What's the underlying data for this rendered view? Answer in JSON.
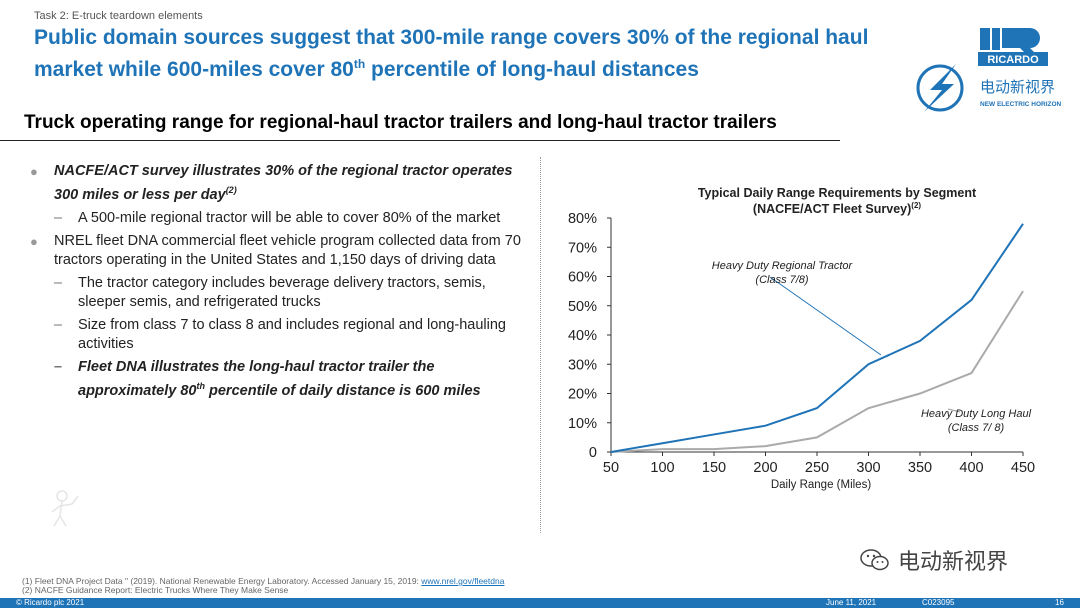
{
  "task_label": "Task 2: E-truck teardown elements",
  "headline": {
    "part1": "Public domain sources suggest that 300-mile range covers 30% of the regional haul market while 600-miles cover 80",
    "sup": "th",
    "part2": " percentile of long-haul distances"
  },
  "subtitle": "Truck operating range for regional-haul tractor trailers and long-haul tractor trailers",
  "logo": {
    "brand": "RICARDO",
    "cn_name": "电动新视界",
    "en_name": "NEW ELECTRIC HORIZON"
  },
  "bullets": [
    {
      "text": "NACFE/ACT survey illustrates 30% of the regional tractor operates 300 miles or less per day",
      "sup": "(2)",
      "subs": [
        {
          "text": "A 500-mile regional tractor will be able to cover 80% of the market"
        }
      ]
    },
    {
      "text": "NREL fleet DNA commercial fleet vehicle program collected data from 70 tractors operating in the United States and 1,150 days of driving data",
      "subs": [
        {
          "text": "The tractor category includes beverage delivery tractors, semis, sleeper semis, and refrigerated trucks"
        },
        {
          "text": "Size from class 7 to class 8 and includes regional and long-hauling activities"
        },
        {
          "pre": "Fleet DNA illustrates the long-haul tractor trailer the approximately 80",
          "sup": "th",
          "post": " percentile of daily distance is 600 miles"
        }
      ]
    }
  ],
  "chart_data": {
    "type": "line",
    "title_line1": "Typical Daily Range Requirements by Segment",
    "title_line2": "(NACFE/ACT Fleet Survey)",
    "title_sup": "(2)",
    "xlabel": "Daily Range (Miles)",
    "x": [
      50,
      100,
      150,
      200,
      250,
      300,
      350,
      400,
      450
    ],
    "xlim": [
      50,
      450
    ],
    "ylim": [
      0,
      80
    ],
    "y_ticks": [
      "0",
      "10%",
      "20%",
      "30%",
      "40%",
      "50%",
      "60%",
      "70%",
      "80%"
    ],
    "series": [
      {
        "name": "Heavy Duty Regional Tractor",
        "name2": "(Class 7/8)",
        "color": "#1f73b7",
        "values": [
          0,
          3,
          6,
          9,
          15,
          30,
          38,
          52,
          78
        ]
      },
      {
        "name": "Heavy Duty Long Haul",
        "name2": "(Class 7/ 8)",
        "color": "#aaaaaa",
        "values": [
          0,
          1,
          1,
          2,
          5,
          15,
          20,
          27,
          55
        ]
      }
    ]
  },
  "footnotes": {
    "fn1_text": "(1)  Fleet DNA Project Data \" (2019). National Renewable Energy Laboratory. Accessed January 15, 2019: ",
    "fn1_link": "www.nrel.gov/fleetdna",
    "fn2_text": "(2)  NACFE Guidance Report: Electric Trucks Where They Make Sense"
  },
  "footer": {
    "copyright": "© Ricardo plc 2021",
    "date": "June 11, 2021",
    "code": "C023095",
    "page": "16"
  },
  "watermark": "电动新视界"
}
